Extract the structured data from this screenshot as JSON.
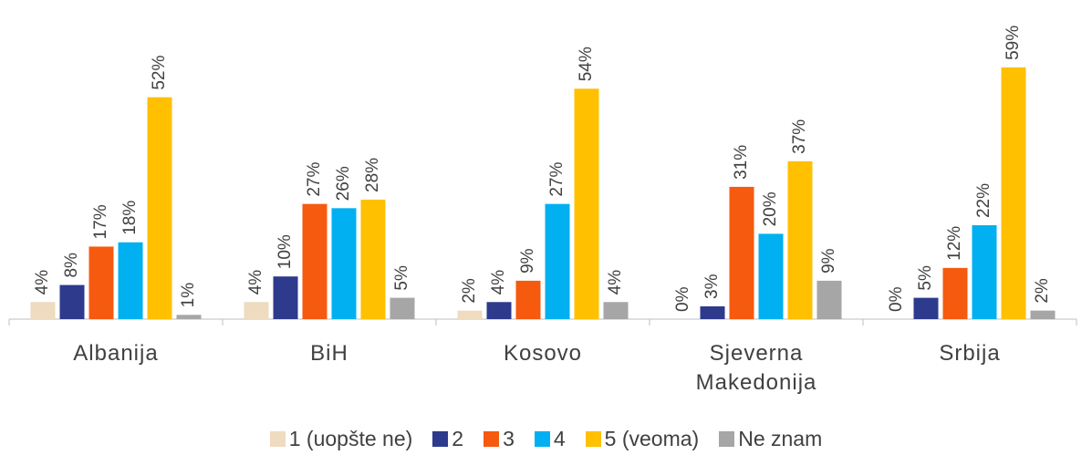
{
  "chart_data": {
    "type": "bar",
    "categories": [
      "Albanija",
      "BiH",
      "Kosovo",
      "Sjeverna Makedonija",
      "Srbija"
    ],
    "series": [
      {
        "name": "1 (uopšte ne)",
        "color": "#efdbbf",
        "values": [
          4,
          4,
          2,
          0,
          0
        ],
        "value_labels": [
          "4%",
          "4%",
          "2%",
          "0%",
          "0%"
        ]
      },
      {
        "name": "2",
        "color": "#2e3a8c",
        "values": [
          8,
          10,
          4,
          3,
          5
        ],
        "value_labels": [
          "8%",
          "10%",
          "4%",
          "3%",
          "5%"
        ]
      },
      {
        "name": "3",
        "color": "#f55a0f",
        "values": [
          17,
          27,
          9,
          31,
          12
        ],
        "value_labels": [
          "17%",
          "27%",
          "9%",
          "31%",
          "12%"
        ]
      },
      {
        "name": "4",
        "color": "#00b0f0",
        "values": [
          18,
          26,
          27,
          20,
          22
        ],
        "value_labels": [
          "18%",
          "26%",
          "27%",
          "20%",
          "22%"
        ]
      },
      {
        "name": "5 (veoma)",
        "color": "#ffc000",
        "values": [
          52,
          28,
          54,
          37,
          59
        ],
        "value_labels": [
          "52%",
          "28%",
          "54%",
          "37%",
          "59%"
        ]
      },
      {
        "name": "Ne znam",
        "color": "#a6a6a6",
        "values": [
          1,
          5,
          4,
          9,
          2
        ],
        "value_labels": [
          "1%",
          "5%",
          "4%",
          "9%",
          "2%"
        ]
      }
    ]
  }
}
